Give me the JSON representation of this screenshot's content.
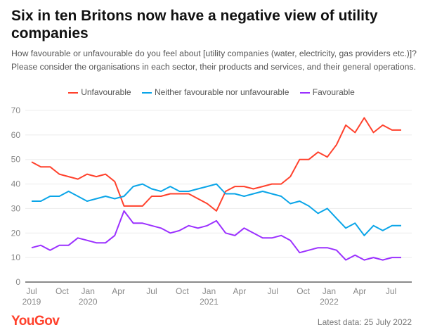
{
  "title": "Six in ten Britons now have a negative view of utility companies",
  "subtitle": "How favourable or unfavourable do you feel about [utility companies (water, electricity, gas providers etc.)]? Please consider the organisations in each sector, their products and services, and their general operations.",
  "brand": "YouGov",
  "footer": "Latest data: 25 July 2022",
  "chart_data": {
    "type": "line",
    "title": "Six in ten Britons now have a negative view of utility companies",
    "xlabel": "",
    "ylabel": "",
    "ylim": [
      0,
      70
    ],
    "yticks": [
      0,
      10,
      20,
      30,
      40,
      50,
      60,
      70
    ],
    "grid": true,
    "legend_position": "top-center",
    "n_points": 41,
    "x_ticks": [
      {
        "index": 0,
        "label": "Jul",
        "year": "2019"
      },
      {
        "index": 3.3,
        "label": "Oct",
        "year": ""
      },
      {
        "index": 6.1,
        "label": "Jan",
        "year": "2020"
      },
      {
        "index": 9.4,
        "label": "Apr",
        "year": ""
      },
      {
        "index": 13.0,
        "label": "Jul",
        "year": ""
      },
      {
        "index": 16.3,
        "label": "Oct",
        "year": ""
      },
      {
        "index": 19.2,
        "label": "Jan",
        "year": "2021"
      },
      {
        "index": 22.5,
        "label": "Apr",
        "year": ""
      },
      {
        "index": 26.1,
        "label": "Jul",
        "year": ""
      },
      {
        "index": 29.4,
        "label": "Oct",
        "year": ""
      },
      {
        "index": 32.2,
        "label": "Jan",
        "year": "2022"
      },
      {
        "index": 35.5,
        "label": "Apr",
        "year": ""
      },
      {
        "index": 38.9,
        "label": "Jul",
        "year": ""
      }
    ],
    "series": [
      {
        "name": "Unfavourable",
        "color": "#ff412c",
        "values": [
          49,
          47,
          47,
          44,
          43,
          42,
          44,
          43,
          44,
          41,
          31,
          31,
          31,
          35,
          35,
          36,
          36,
          36,
          34,
          32,
          29,
          37,
          39,
          39,
          38,
          39,
          40,
          40,
          43,
          50,
          50,
          53,
          51,
          56,
          64,
          61,
          67,
          61,
          64,
          62,
          62
        ]
      },
      {
        "name": "Neither favourable nor unfavourable",
        "color": "#0aa5e8",
        "values": [
          33,
          33,
          35,
          35,
          37,
          35,
          33,
          34,
          35,
          34,
          35,
          39,
          40,
          38,
          37,
          39,
          37,
          37,
          38,
          39,
          40,
          36,
          36,
          35,
          36,
          37,
          36,
          35,
          32,
          33,
          31,
          28,
          30,
          26,
          22,
          24,
          19,
          23,
          21,
          23,
          23
        ]
      },
      {
        "name": "Favourable",
        "color": "#9b30ff",
        "values": [
          14,
          15,
          13,
          15,
          15,
          18,
          17,
          16,
          16,
          19,
          29,
          24,
          24,
          23,
          22,
          20,
          21,
          23,
          22,
          23,
          25,
          20,
          19,
          22,
          20,
          18,
          18,
          19,
          17,
          12,
          13,
          14,
          14,
          13,
          9,
          11,
          9,
          10,
          9,
          10,
          10
        ]
      }
    ]
  }
}
